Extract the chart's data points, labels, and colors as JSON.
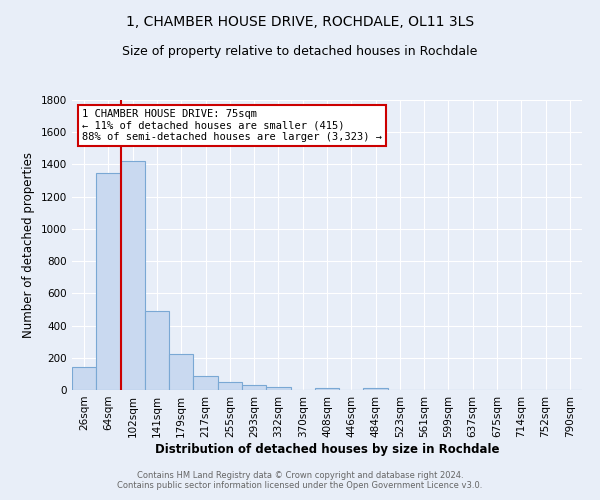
{
  "title": "1, CHAMBER HOUSE DRIVE, ROCHDALE, OL11 3LS",
  "subtitle": "Size of property relative to detached houses in Rochdale",
  "xlabel": "Distribution of detached houses by size in Rochdale",
  "ylabel": "Number of detached properties",
  "footer_line1": "Contains HM Land Registry data © Crown copyright and database right 2024.",
  "footer_line2": "Contains public sector information licensed under the Open Government Licence v3.0.",
  "bin_labels": [
    "26sqm",
    "64sqm",
    "102sqm",
    "141sqm",
    "179sqm",
    "217sqm",
    "255sqm",
    "293sqm",
    "332sqm",
    "370sqm",
    "408sqm",
    "446sqm",
    "484sqm",
    "523sqm",
    "561sqm",
    "599sqm",
    "637sqm",
    "675sqm",
    "714sqm",
    "752sqm",
    "790sqm"
  ],
  "bar_values": [
    140,
    1350,
    1420,
    490,
    225,
    85,
    50,
    30,
    20,
    0,
    15,
    0,
    15,
    0,
    0,
    0,
    0,
    0,
    0,
    0,
    0
  ],
  "bar_color": "#c9d9f0",
  "bar_edge_color": "#7aa8d4",
  "vline_x": 1.5,
  "vline_color": "#cc0000",
  "ylim": [
    0,
    1800
  ],
  "yticks": [
    0,
    200,
    400,
    600,
    800,
    1000,
    1200,
    1400,
    1600,
    1800
  ],
  "annotation_text": "1 CHAMBER HOUSE DRIVE: 75sqm\n← 11% of detached houses are smaller (415)\n88% of semi-detached houses are larger (3,323) →",
  "annotation_box_color": "#ffffff",
  "annotation_box_edge": "#cc0000",
  "bg_color": "#e8eef8",
  "grid_color": "#ffffff",
  "title_fontsize": 10,
  "subtitle_fontsize": 9,
  "axis_label_fontsize": 8.5,
  "tick_fontsize": 7.5,
  "annotation_fontsize": 7.5,
  "footer_fontsize": 6.0
}
